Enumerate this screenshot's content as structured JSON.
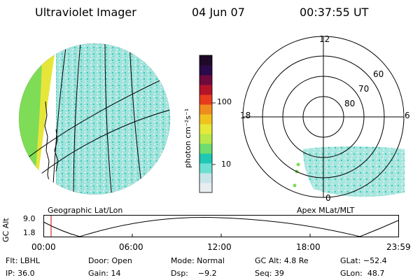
{
  "header": {
    "title": "Ultraviolet Imager",
    "date": "04 Jun 07",
    "time": "00:37:55 UT"
  },
  "colorbar": {
    "unit_label": "photon cm⁻²s⁻¹",
    "ticks": [
      "100",
      "10"
    ],
    "colors": [
      "#e8eef0",
      "#c8e6ea",
      "#6ee0d2",
      "#1fc8b4",
      "#6edc6e",
      "#b8e84a",
      "#e6e83a",
      "#f0c21e",
      "#f08c1e",
      "#e83c1e",
      "#b4142a",
      "#6e0a3c",
      "#2a0a4a",
      "#1e0a28"
    ]
  },
  "left_panel": {
    "caption": "Geographic Lat/Lon"
  },
  "right_panel": {
    "caption": "Apex MLat/MLT",
    "lat_labels": [
      "60",
      "70",
      "80"
    ],
    "mlt_labels": {
      "top": "12",
      "left": "18",
      "right": "6",
      "bottom": "0"
    }
  },
  "altitude_plot": {
    "axis_title": "GC Alt",
    "y_ticks": [
      "9.0",
      "1.8"
    ],
    "x_ticks": [
      "00:00",
      "06:00",
      "12:00",
      "18:00",
      "23:59"
    ],
    "current_time_color": "#cc0000"
  },
  "info": {
    "row1": {
      "flt": "Flt: LBHL",
      "door": "Door: Open",
      "mode": "Mode: Normal",
      "gcalt": "GC Alt: 4.8 Re",
      "glat": "GLat: −52.4"
    },
    "row2": {
      "ip": "IP: 36.0",
      "gain": "Gain: 14",
      "dsp": "Dsp:    −9.2",
      "seq": "Seq: 39",
      "glon": "GLon:  48.7"
    }
  }
}
